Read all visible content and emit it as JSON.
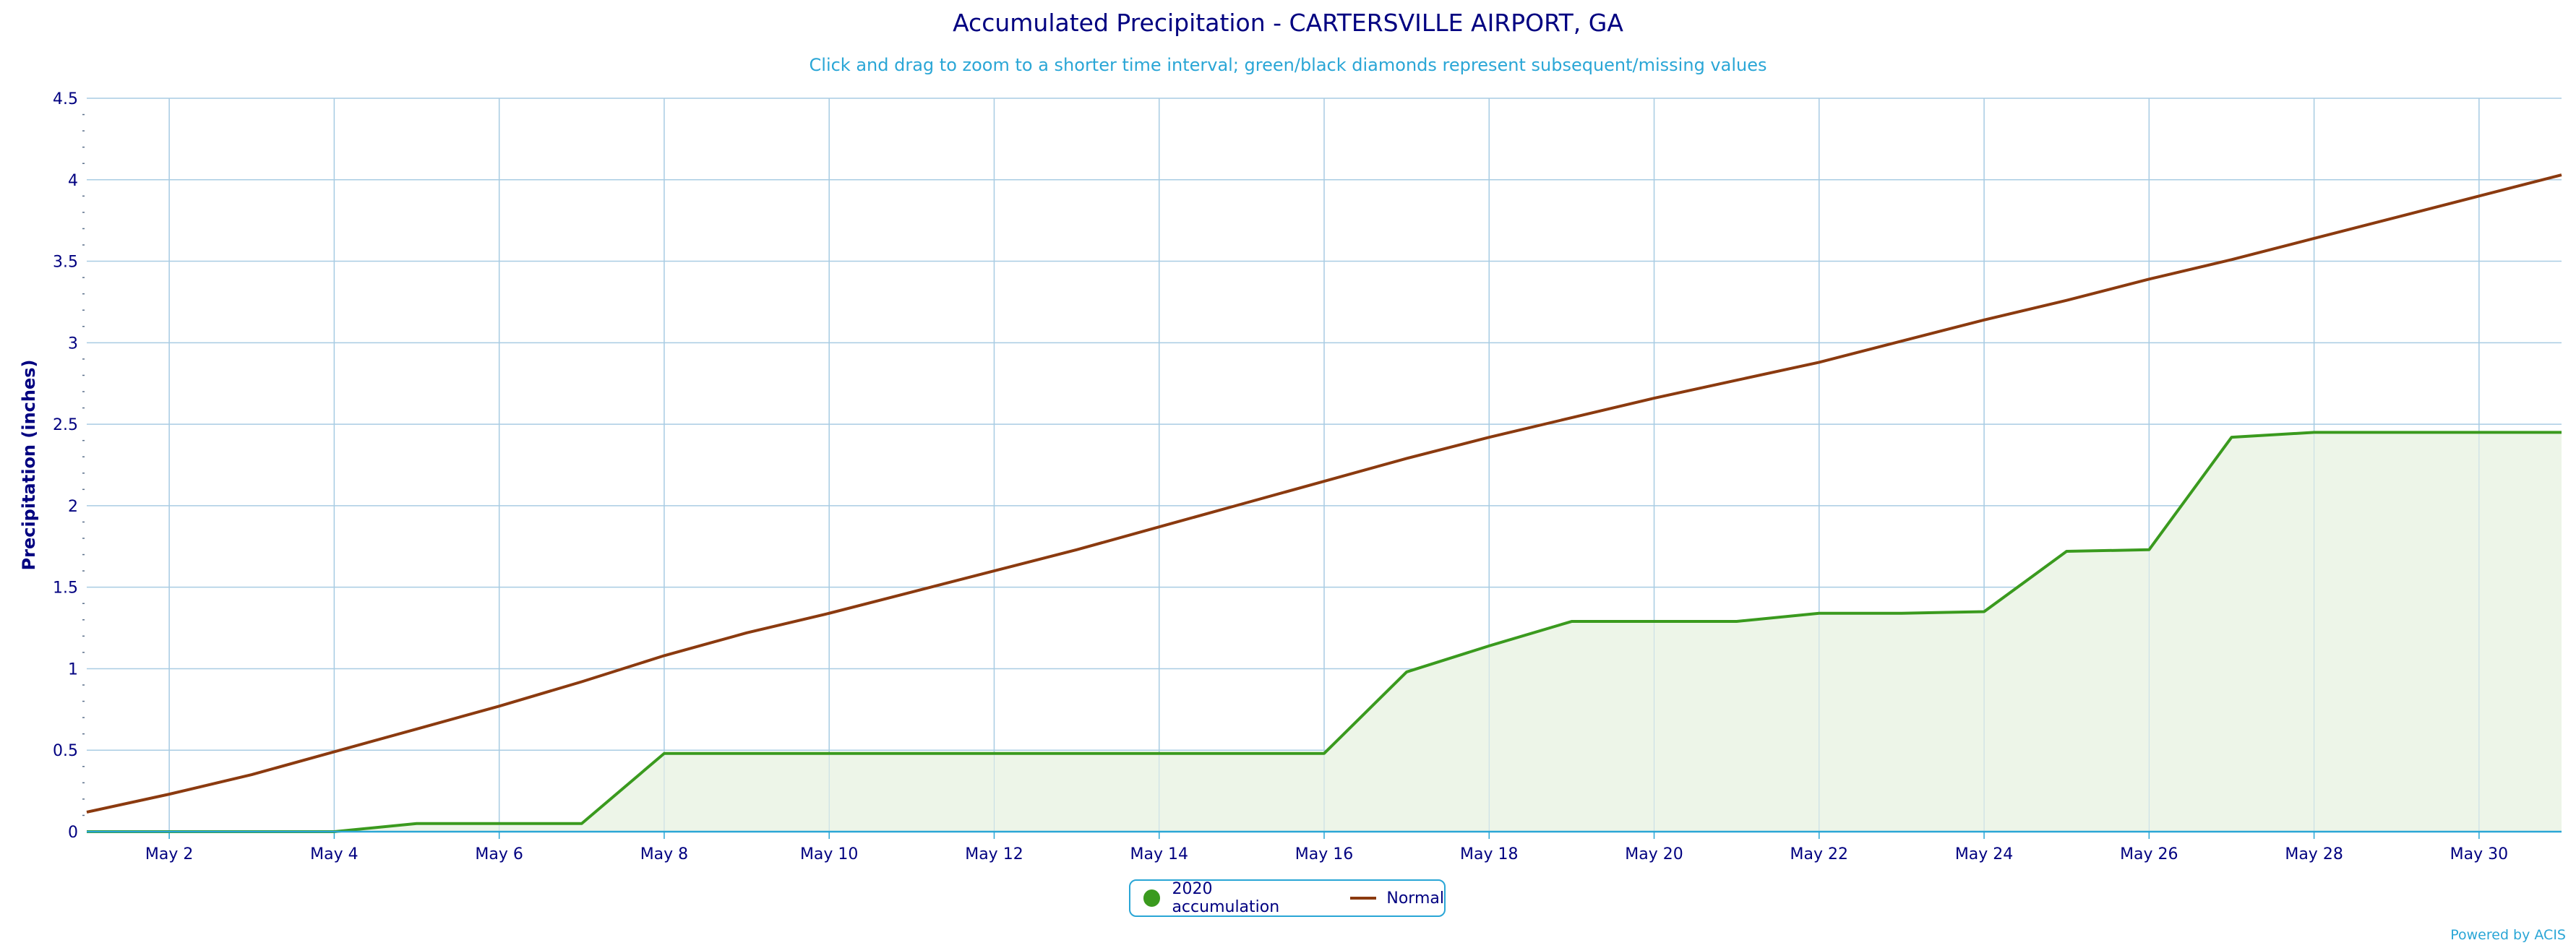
{
  "chart_data": {
    "type": "line",
    "title": "Accumulated Precipitation - CARTERSVILLE AIRPORT, GA",
    "subtitle": "Click and drag to zoom to a shorter time interval; green/black diamonds represent subsequent/missing values",
    "ylabel": "Precipitation (inches)",
    "xlabel": "",
    "ylim": [
      0,
      4.5
    ],
    "xlim": [
      1,
      31
    ],
    "yticks": [
      0,
      0.5,
      1,
      1.5,
      2,
      2.5,
      3,
      3.5,
      4,
      4.5
    ],
    "ytick_labels": [
      "0",
      "0.5",
      "1",
      "1.5",
      "2",
      "2.5",
      "3",
      "3.5",
      "4",
      "4.5"
    ],
    "xticks": [
      2,
      4,
      6,
      8,
      10,
      12,
      14,
      16,
      18,
      20,
      22,
      24,
      26,
      28,
      30
    ],
    "xtick_labels": [
      "May 2",
      "May 4",
      "May 6",
      "May 8",
      "May 10",
      "May 12",
      "May 14",
      "May 16",
      "May 18",
      "May 20",
      "May 22",
      "May 24",
      "May 26",
      "May 28",
      "May 30"
    ],
    "grid": true,
    "legend_position": "bottom-center",
    "x": [
      1,
      2,
      3,
      4,
      5,
      6,
      7,
      8,
      9,
      10,
      11,
      12,
      13,
      14,
      15,
      16,
      17,
      18,
      19,
      20,
      21,
      22,
      23,
      24,
      25,
      26,
      27,
      28,
      29,
      30,
      31
    ],
    "series": [
      {
        "name": "2020 accumulation",
        "color": "#3a9a1e",
        "fill": "#edf5e8",
        "values": [
          0,
          0,
          0,
          0,
          0.05,
          0.05,
          0.05,
          0.48,
          0.48,
          0.48,
          0.48,
          0.48,
          0.48,
          0.48,
          0.48,
          0.48,
          0.98,
          1.14,
          1.29,
          1.29,
          1.29,
          1.34,
          1.34,
          1.35,
          1.72,
          1.73,
          2.42,
          2.45,
          2.45,
          2.45,
          2.45
        ]
      },
      {
        "name": "Normal",
        "color": "#8b3a0f",
        "values": [
          0.12,
          0.23,
          0.35,
          0.49,
          0.63,
          0.77,
          0.92,
          1.08,
          1.22,
          1.34,
          1.47,
          1.6,
          1.73,
          1.87,
          2.01,
          2.15,
          2.29,
          2.42,
          2.54,
          2.66,
          2.77,
          2.88,
          3.01,
          3.14,
          3.26,
          3.39,
          3.51,
          3.64,
          3.77,
          3.9,
          4.03
        ]
      }
    ]
  },
  "footer": {
    "credit": "Powered by ACIS"
  }
}
